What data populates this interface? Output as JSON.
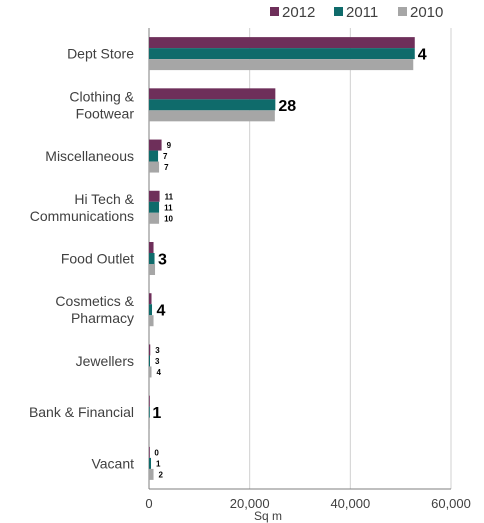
{
  "chart_data": {
    "type": "bar",
    "orientation": "horizontal",
    "title": "",
    "xlabel": "Sq m",
    "ylabel": "",
    "xlim": [
      0,
      60000
    ],
    "xticks": [
      0,
      20000,
      40000,
      60000
    ],
    "xtick_labels": [
      "0",
      "20,000",
      "40,000",
      "60,000"
    ],
    "grid": "vertical",
    "legend_position": "top-right",
    "categories": [
      [
        "Dept Store"
      ],
      [
        "Clothing &",
        "Footwear"
      ],
      [
        "Miscellaneous"
      ],
      [
        "Hi Tech &",
        "Communications"
      ],
      [
        "Food Outlet"
      ],
      [
        "Cosmetics &",
        "Pharmacy"
      ],
      [
        "Jewellers"
      ],
      [
        "Bank & Financial"
      ],
      [
        "Vacant"
      ]
    ],
    "series": [
      {
        "name": "2012",
        "color": "#6e2f5a",
        "values": [
          52800,
          25100,
          2500,
          2100,
          900,
          500,
          250,
          80,
          80
        ]
      },
      {
        "name": "2011",
        "color": "#0f6b6b",
        "values": [
          52800,
          25100,
          1800,
          2000,
          1100,
          600,
          200,
          80,
          400
        ]
      },
      {
        "name": "2010",
        "color": "#a6a6a6",
        "values": [
          52500,
          25000,
          2000,
          2000,
          1200,
          900,
          500,
          80,
          900
        ]
      }
    ],
    "annotations": [
      {
        "category_index": 0,
        "style": "big",
        "labels": [
          "4"
        ]
      },
      {
        "category_index": 1,
        "style": "big",
        "labels": [
          "28"
        ]
      },
      {
        "category_index": 2,
        "style": "small",
        "labels": [
          "9",
          "7",
          "7"
        ]
      },
      {
        "category_index": 3,
        "style": "small",
        "labels": [
          "11",
          "11",
          "10"
        ]
      },
      {
        "category_index": 4,
        "style": "big",
        "labels": [
          "3"
        ]
      },
      {
        "category_index": 5,
        "style": "big",
        "labels": [
          "4"
        ]
      },
      {
        "category_index": 6,
        "style": "small",
        "labels": [
          "3",
          "3",
          "4"
        ]
      },
      {
        "category_index": 7,
        "style": "big",
        "labels": [
          "1"
        ]
      },
      {
        "category_index": 8,
        "style": "small",
        "labels": [
          "0",
          "1",
          "2"
        ]
      }
    ]
  }
}
